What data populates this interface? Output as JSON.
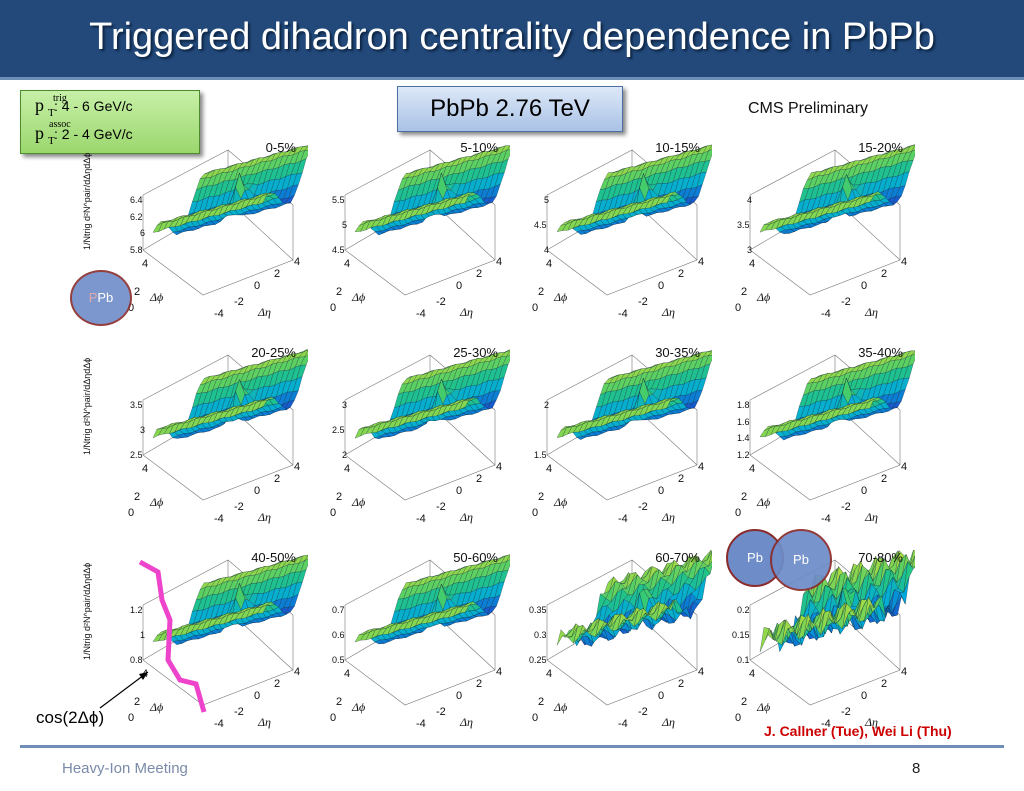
{
  "slide": {
    "title": "Triggered dihadron centrality dependence in PbPb",
    "energy_label": "PbPb 2.76 TeV",
    "cms_label": "CMS Preliminary",
    "pt_box": {
      "trig_symbol": "p",
      "trig_sub": "T",
      "trig_sup": "trig",
      "trig_range": ": 4 - 6 GeV/c",
      "assoc_symbol": "p",
      "assoc_sub": "T",
      "assoc_sup": "assoc",
      "assoc_range": ": 2 - 4 GeV/c"
    },
    "cos_label": "cos(2Δϕ)",
    "credit": "J. Callner (Tue), Wei Li (Thu)",
    "footer_left": "Heavy-Ion Meeting",
    "page_number": "8",
    "nuclei": {
      "left": "Pb",
      "left_ghost": "P",
      "right_a": "Pb",
      "right_b": "Pb"
    },
    "ylabel_text": "1/Ntrig d²N^pair/dΔηdΔϕ"
  },
  "chart_data": [
    {
      "type": "surface",
      "title": "0-5%",
      "zlim": [
        5.7,
        6.5
      ],
      "ticks": [
        "6.4",
        "6.2",
        "6",
        "5.8"
      ],
      "xticks": [
        "-4",
        "-2",
        "0",
        "2",
        "4"
      ],
      "yticks": [
        "0",
        "2",
        "4"
      ],
      "xlabel": "Δη",
      "ylabel": "Δϕ"
    },
    {
      "type": "surface",
      "title": "5-10%",
      "zlim": [
        4.4,
        5.6
      ],
      "ticks": [
        "5.5",
        "5",
        "4.5"
      ],
      "xticks": [
        "-4",
        "-2",
        "0",
        "2",
        "4"
      ],
      "yticks": [
        "0",
        "2",
        "4"
      ],
      "xlabel": "Δη",
      "ylabel": "Δϕ"
    },
    {
      "type": "surface",
      "title": "10-15%",
      "zlim": [
        3.8,
        5.1
      ],
      "ticks": [
        "5",
        "4.5",
        "4"
      ],
      "xticks": [
        "-4",
        "-2",
        "0",
        "2",
        "4"
      ],
      "yticks": [
        "0",
        "2",
        "4"
      ],
      "xlabel": "Δη",
      "ylabel": "Δϕ"
    },
    {
      "type": "surface",
      "title": "15-20%",
      "zlim": [
        2.9,
        4.1
      ],
      "ticks": [
        "4",
        "3.5",
        "3"
      ],
      "xticks": [
        "-4",
        "-2",
        "0",
        "2",
        "4"
      ],
      "yticks": [
        "0",
        "2",
        "4"
      ],
      "xlabel": "Δη",
      "ylabel": "Δϕ"
    },
    {
      "type": "surface",
      "title": "20-25%",
      "zlim": [
        2.4,
        3.6
      ],
      "ticks": [
        "3.5",
        "3",
        "2.5"
      ],
      "xticks": [
        "-4",
        "-2",
        "0",
        "2",
        "4"
      ],
      "yticks": [
        "0",
        "2",
        "4"
      ],
      "xlabel": "Δη",
      "ylabel": "Δϕ"
    },
    {
      "type": "surface",
      "title": "25-30%",
      "zlim": [
        1.9,
        3.1
      ],
      "ticks": [
        "3",
        "2.5",
        "2"
      ],
      "xticks": [
        "-4",
        "-2",
        "0",
        "2",
        "4"
      ],
      "yticks": [
        "0",
        "2",
        "4"
      ],
      "xlabel": "Δη",
      "ylabel": "Δϕ"
    },
    {
      "type": "surface",
      "title": "30-35%",
      "zlim": [
        1.4,
        2.6
      ],
      "ticks": [
        "2",
        "1.5"
      ],
      "xticks": [
        "-4",
        "-2",
        "0",
        "2",
        "4"
      ],
      "yticks": [
        "0",
        "2",
        "4"
      ],
      "xlabel": "Δη",
      "ylabel": "Δϕ"
    },
    {
      "type": "surface",
      "title": "35-40%",
      "zlim": [
        1.1,
        1.9
      ],
      "ticks": [
        "1.8",
        "1.6",
        "1.4",
        "1.2"
      ],
      "xticks": [
        "-4",
        "-2",
        "0",
        "2",
        "4"
      ],
      "yticks": [
        "0",
        "2",
        "4"
      ],
      "xlabel": "Δη",
      "ylabel": "Δϕ"
    },
    {
      "type": "surface",
      "title": "40-50%",
      "zlim": [
        0.75,
        1.25
      ],
      "ticks": [
        "1.2",
        "1",
        "0.8"
      ],
      "xticks": [
        "-4",
        "-2",
        "0",
        "2",
        "4"
      ],
      "yticks": [
        "0",
        "2",
        "4"
      ],
      "xlabel": "Δη",
      "ylabel": "Δϕ"
    },
    {
      "type": "surface",
      "title": "50-60%",
      "zlim": [
        0.45,
        0.75
      ],
      "ticks": [
        "0.7",
        "0.6",
        "0.5"
      ],
      "xticks": [
        "-4",
        "-2",
        "0",
        "2",
        "4"
      ],
      "yticks": [
        "0",
        "2",
        "4"
      ],
      "xlabel": "Δη",
      "ylabel": "Δϕ"
    },
    {
      "type": "surface",
      "title": "60-70%",
      "zlim": [
        0.24,
        0.36
      ],
      "ticks": [
        "0.35",
        "0.3",
        "0.25"
      ],
      "xticks": [
        "-4",
        "-2",
        "0",
        "2",
        "4"
      ],
      "yticks": [
        "0",
        "2",
        "4"
      ],
      "xlabel": "Δη",
      "ylabel": "Δϕ"
    },
    {
      "type": "surface",
      "title": "70-80%",
      "zlim": [
        0.09,
        0.22
      ],
      "ticks": [
        "0.2",
        "0.15",
        "0.1"
      ],
      "xticks": [
        "-4",
        "-2",
        "0",
        "2",
        "4"
      ],
      "yticks": [
        "0",
        "2",
        "4"
      ],
      "xlabel": "Δη",
      "ylabel": "Δϕ"
    }
  ]
}
